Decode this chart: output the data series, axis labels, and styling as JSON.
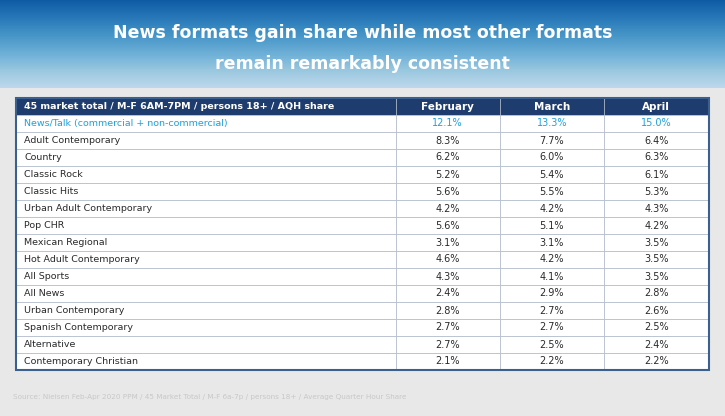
{
  "title_line1": "News formats gain share while most other formats",
  "title_line2": "remain remarkably consistent",
  "header_label": "45 market total / M-F 6AM-7PM / persons 18+ / AQH share",
  "columns": [
    "February",
    "March",
    "April"
  ],
  "rows": [
    {
      "label": "News/Talk (commercial + non-commercial)",
      "values": [
        "12.1%",
        "13.3%",
        "15.0%"
      ],
      "highlight": true
    },
    {
      "label": "Adult Contemporary",
      "values": [
        "8.3%",
        "7.7%",
        "6.4%"
      ],
      "highlight": false
    },
    {
      "label": "Country",
      "values": [
        "6.2%",
        "6.0%",
        "6.3%"
      ],
      "highlight": false
    },
    {
      "label": "Classic Rock",
      "values": [
        "5.2%",
        "5.4%",
        "6.1%"
      ],
      "highlight": false
    },
    {
      "label": "Classic Hits",
      "values": [
        "5.6%",
        "5.5%",
        "5.3%"
      ],
      "highlight": false
    },
    {
      "label": "Urban Adult Contemporary",
      "values": [
        "4.2%",
        "4.2%",
        "4.3%"
      ],
      "highlight": false
    },
    {
      "label": "Pop CHR",
      "values": [
        "5.6%",
        "5.1%",
        "4.2%"
      ],
      "highlight": false
    },
    {
      "label": "Mexican Regional",
      "values": [
        "3.1%",
        "3.1%",
        "3.5%"
      ],
      "highlight": false
    },
    {
      "label": "Hot Adult Contemporary",
      "values": [
        "4.6%",
        "4.2%",
        "3.5%"
      ],
      "highlight": false
    },
    {
      "label": "All Sports",
      "values": [
        "4.3%",
        "4.1%",
        "3.5%"
      ],
      "highlight": false
    },
    {
      "label": "All News",
      "values": [
        "2.4%",
        "2.9%",
        "2.8%"
      ],
      "highlight": false
    },
    {
      "label": "Urban Contemporary",
      "values": [
        "2.8%",
        "2.7%",
        "2.6%"
      ],
      "highlight": false
    },
    {
      "label": "Spanish Contemporary",
      "values": [
        "2.7%",
        "2.7%",
        "2.5%"
      ],
      "highlight": false
    },
    {
      "label": "Alternative",
      "values": [
        "2.7%",
        "2.5%",
        "2.4%"
      ],
      "highlight": false
    },
    {
      "label": "Contemporary Christian",
      "values": [
        "2.1%",
        "2.2%",
        "2.2%"
      ],
      "highlight": false
    }
  ],
  "source_text": "Source: Nielsen Feb-Apr 2020 PPM / 45 Market Total / M-F 6a-7p / persons 18+ / Average Quarter Hour Share",
  "title_bg_top": "#0d2a52",
  "title_bg_bottom": "#1a4a7a",
  "title_text_color": "#ffffff",
  "header_bg_color": "#1e3d6e",
  "header_text_color": "#ffffff",
  "highlight_text_color": "#1fa0dc",
  "row_bg_color": "#ffffff",
  "cell_border_color": "#b0b8c8",
  "outer_border_color": "#3a6090",
  "footer_bg_color": "#4a4a4a",
  "footer_text_color": "#c8c8c8",
  "body_text_color": "#2a2a2a",
  "figure_bg_color": "#e8e8e8",
  "table_margin_color": "#e8e8e8"
}
